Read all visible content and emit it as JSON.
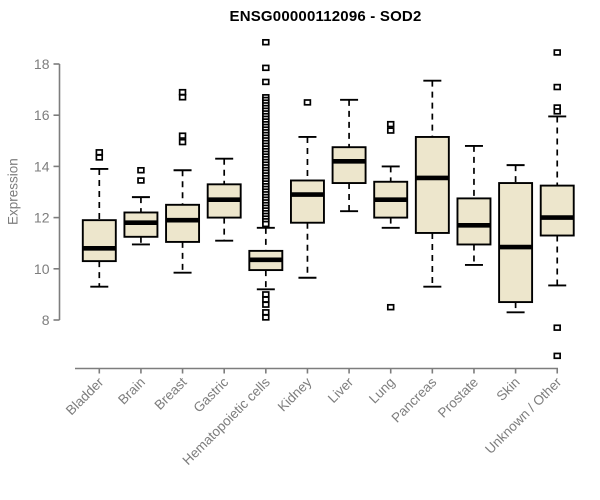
{
  "chart_data": {
    "type": "boxplot",
    "title": "ENSG00000112096 - SOD2",
    "xlabel": "",
    "ylabel": "Expression",
    "ylim": [
      8,
      18
    ],
    "yticks": [
      8,
      10,
      12,
      14,
      16,
      18
    ],
    "grid": false,
    "legend": "none",
    "colors": {
      "box_fill": "#EDE6CC",
      "box_stroke": "#000000",
      "median": "#000000",
      "whisker": "#000000",
      "axis": "#7d7d7d",
      "tick_label": "#7d7d7d",
      "title": "#000000",
      "background": "#ffffff"
    },
    "categories": [
      "Bladder",
      "Brain",
      "Breast",
      "Gastric",
      "Hematopoietic cells",
      "Kidney",
      "Liver",
      "Lung",
      "Pancreas",
      "Prostate",
      "Skin",
      "Unknown / Other"
    ],
    "boxes": [
      {
        "category": "Bladder",
        "whisker_low": 9.3,
        "q1": 10.3,
        "median": 10.8,
        "q3": 11.9,
        "whisker_high": 13.9,
        "outliers": [
          14.55,
          14.35
        ]
      },
      {
        "category": "Brain",
        "whisker_low": 10.95,
        "q1": 11.25,
        "median": 11.8,
        "q3": 12.2,
        "whisker_high": 12.8,
        "outliers": [
          13.85,
          13.45
        ]
      },
      {
        "category": "Breast",
        "whisker_low": 9.85,
        "q1": 11.05,
        "median": 11.9,
        "q3": 12.5,
        "whisker_high": 13.85,
        "outliers": [
          16.9,
          16.7,
          15.2,
          14.95
        ]
      },
      {
        "category": "Gastric",
        "whisker_low": 11.1,
        "q1": 12.0,
        "median": 12.7,
        "q3": 13.3,
        "whisker_high": 14.3,
        "outliers": []
      },
      {
        "category": "Hematopoietic cells",
        "whisker_low": 9.2,
        "q1": 9.95,
        "median": 10.35,
        "q3": 10.7,
        "whisker_high": 11.6,
        "outliers": [
          18.85,
          17.85,
          17.3,
          9.0,
          8.8,
          8.6,
          8.3,
          8.1
        ],
        "outlier_band": {
          "min": 11.75,
          "max": 16.7,
          "count": 48
        }
      },
      {
        "category": "Kidney",
        "whisker_low": 9.65,
        "q1": 11.8,
        "median": 12.9,
        "q3": 13.45,
        "whisker_high": 15.15,
        "outliers": [
          16.5
        ]
      },
      {
        "category": "Liver",
        "whisker_low": 12.25,
        "q1": 13.35,
        "median": 14.2,
        "q3": 14.75,
        "whisker_high": 16.6,
        "outliers": []
      },
      {
        "category": "Lung",
        "whisker_low": 11.6,
        "q1": 12.0,
        "median": 12.7,
        "q3": 13.4,
        "whisker_high": 14.0,
        "outliers": [
          15.65,
          15.4,
          8.5
        ]
      },
      {
        "category": "Pancreas",
        "whisker_low": 9.3,
        "q1": 11.4,
        "median": 13.55,
        "q3": 15.15,
        "whisker_high": 17.35,
        "outliers": []
      },
      {
        "category": "Prostate",
        "whisker_low": 10.15,
        "q1": 10.95,
        "median": 11.7,
        "q3": 12.75,
        "whisker_high": 14.8,
        "outliers": []
      },
      {
        "category": "Skin",
        "whisker_low": 8.3,
        "q1": 8.7,
        "median": 10.85,
        "q3": 13.35,
        "whisker_high": 14.05,
        "outliers": []
      },
      {
        "category": "Unknown / Other",
        "whisker_low": 9.35,
        "q1": 11.3,
        "median": 12.0,
        "q3": 13.25,
        "whisker_high": 15.95,
        "outliers": [
          18.45,
          17.1,
          16.3,
          16.15,
          7.7,
          6.6
        ]
      }
    ]
  }
}
